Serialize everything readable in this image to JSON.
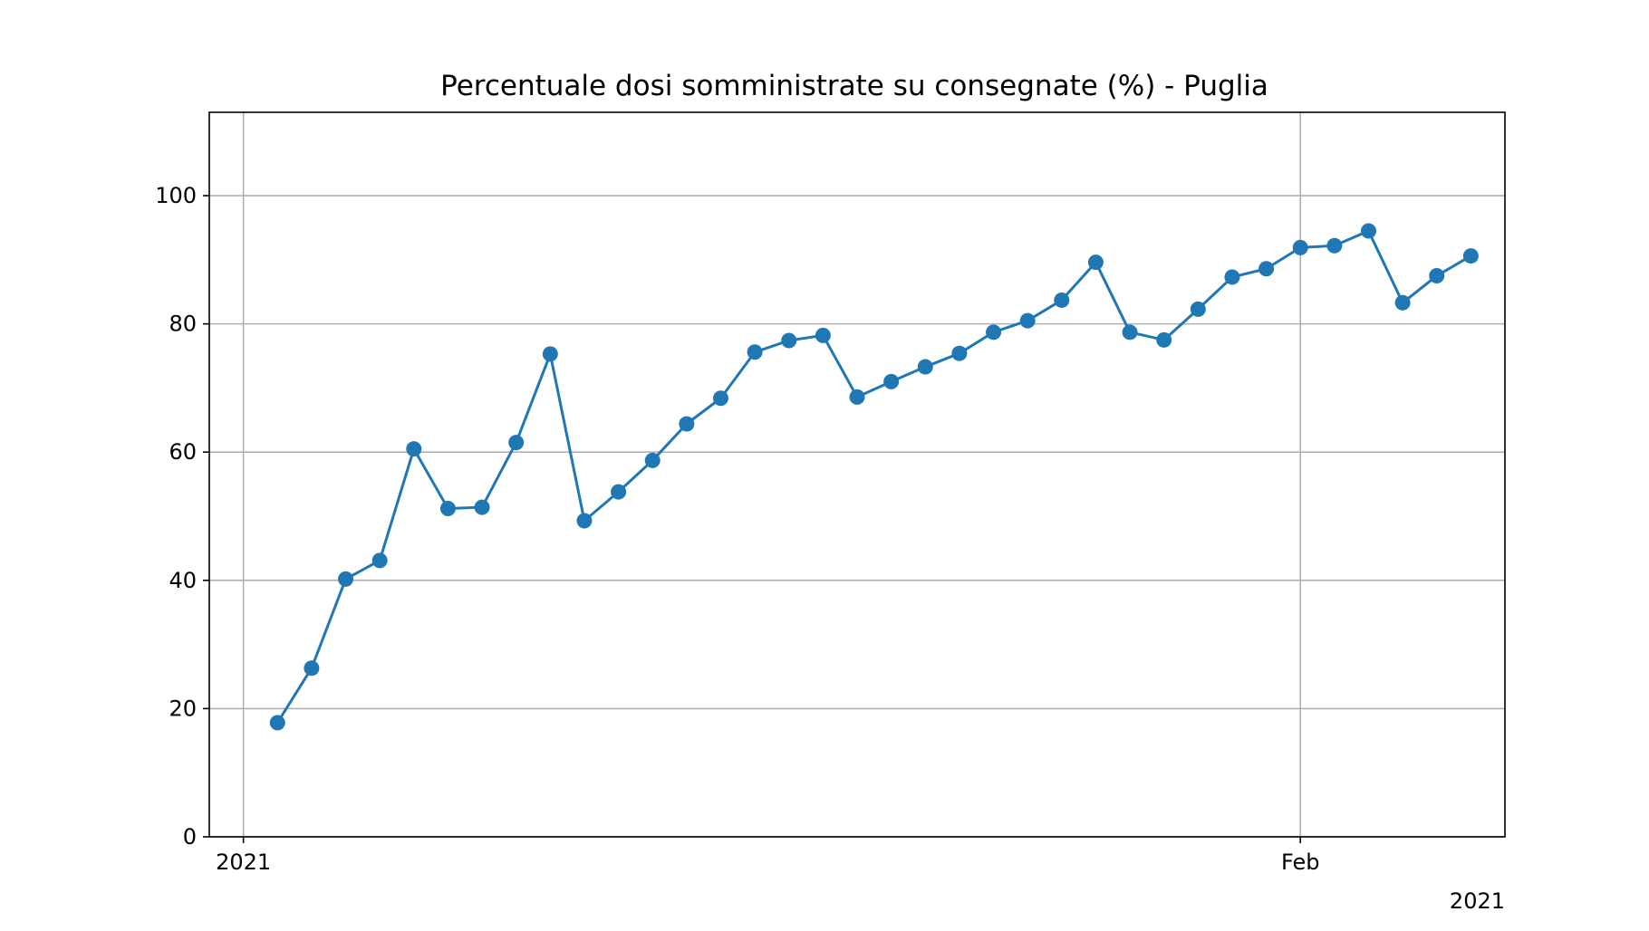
{
  "chart_data": {
    "type": "line",
    "title": "Percentuale dosi somministrate su consegnate (%) - Puglia",
    "xlabel": "",
    "ylabel": "",
    "x_axis_type": "date",
    "xlim": [
      "2020-12-31",
      "2021-02-07"
    ],
    "ylim": [
      0,
      113
    ],
    "grid": true,
    "legend": "none",
    "color": "#1f77b4",
    "y_ticks": [
      0,
      20,
      40,
      60,
      80,
      100
    ],
    "x_ticks": [
      {
        "date": "2021-01-01",
        "label": "2021"
      },
      {
        "date": "2021-02-01",
        "label": "Feb"
      }
    ],
    "x_offset_label": "2021",
    "series": [
      {
        "x": [
          "2021-01-02",
          "2021-01-03",
          "2021-01-04",
          "2021-01-05",
          "2021-01-06",
          "2021-01-07",
          "2021-01-08",
          "2021-01-09",
          "2021-01-10",
          "2021-01-11",
          "2021-01-12",
          "2021-01-13",
          "2021-01-14",
          "2021-01-15",
          "2021-01-16",
          "2021-01-17",
          "2021-01-18",
          "2021-01-19",
          "2021-01-20",
          "2021-01-21",
          "2021-01-22",
          "2021-01-23",
          "2021-01-24",
          "2021-01-25",
          "2021-01-26",
          "2021-01-27",
          "2021-01-28",
          "2021-01-29",
          "2021-01-30",
          "2021-01-31",
          "2021-02-01",
          "2021-02-02",
          "2021-02-03",
          "2021-02-04",
          "2021-02-05",
          "2021-02-06"
        ],
        "values": [
          17.8,
          26.3,
          40.2,
          43.1,
          60.5,
          51.2,
          51.4,
          61.5,
          75.3,
          49.3,
          53.8,
          58.7,
          64.4,
          68.4,
          75.6,
          77.4,
          78.2,
          68.6,
          71.0,
          73.3,
          75.4,
          78.7,
          80.5,
          83.7,
          89.6,
          78.7,
          77.5,
          82.3,
          87.3,
          88.6,
          91.9,
          92.2,
          94.5,
          83.3,
          87.5,
          90.6
        ]
      }
    ]
  }
}
